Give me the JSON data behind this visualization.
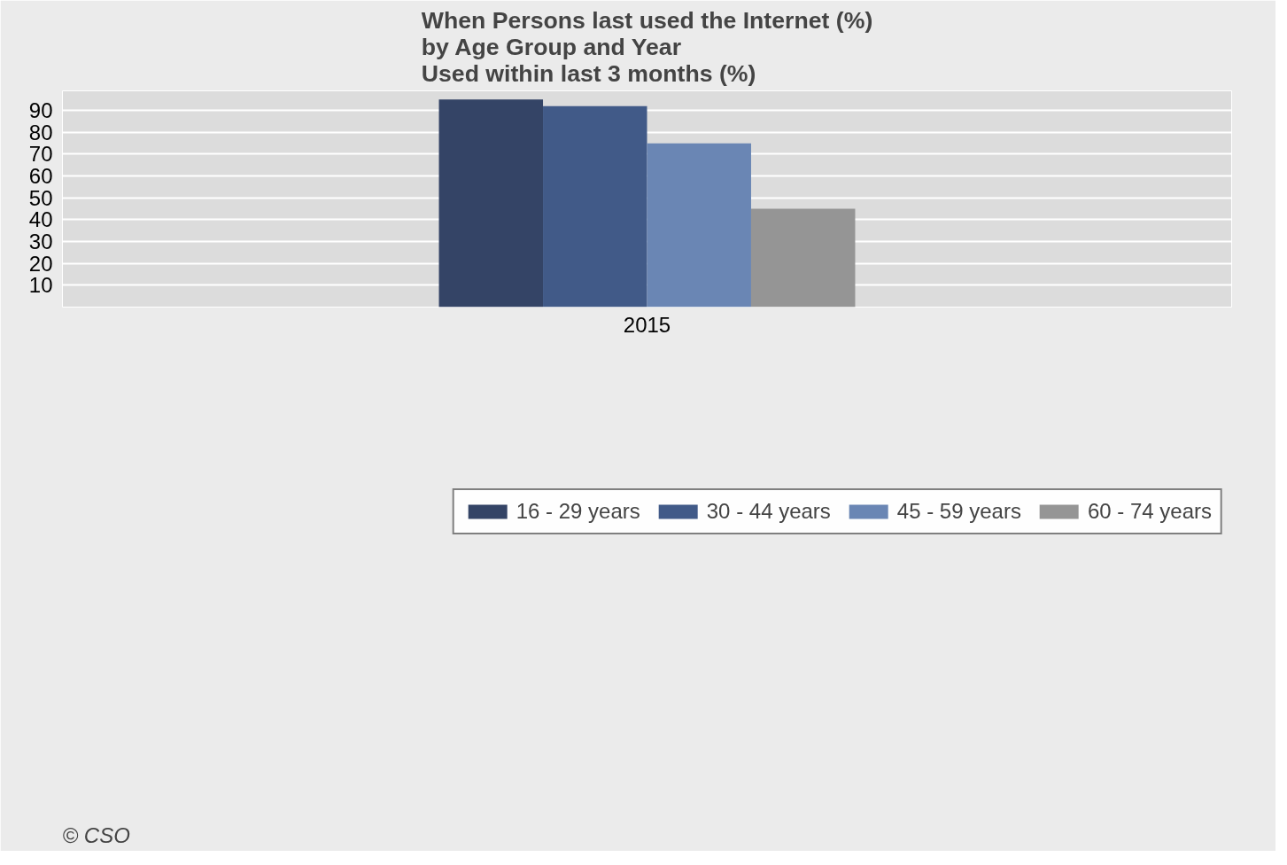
{
  "chart_data": {
    "type": "bar",
    "title": "When Persons last used the Internet (%)\nby Age Group and Year\nUsed within last 3 months (%)",
    "categories": [
      "2015"
    ],
    "series": [
      {
        "name": "16 - 29 years",
        "color": "#344466",
        "values": [
          95
        ]
      },
      {
        "name": "30 - 44 years",
        "color": "#415a88",
        "values": [
          92
        ]
      },
      {
        "name": "45 - 59 years",
        "color": "#6a86b4",
        "values": [
          75
        ]
      },
      {
        "name": "60 - 74 years",
        "color": "#959595",
        "values": [
          45
        ]
      }
    ],
    "ylim": [
      0,
      99
    ],
    "yticks": [
      10,
      20,
      30,
      40,
      50,
      60,
      70,
      80,
      90
    ],
    "grid": "y",
    "legend": "bottom",
    "annotations": [
      "© CSO"
    ]
  }
}
